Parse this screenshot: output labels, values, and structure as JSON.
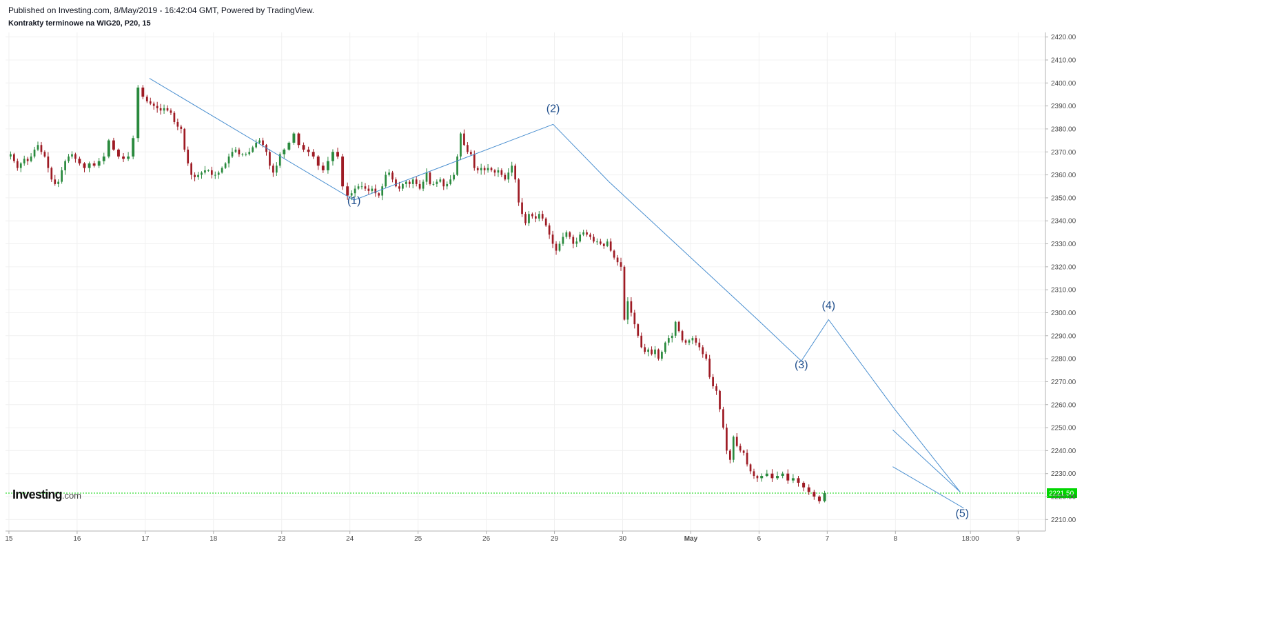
{
  "header": {
    "published": "Published on Investing.com, 8/May/2019 - 16:42:04 GMT, Powered by TradingView.",
    "title": "Kontrakty terminowe na WIG20, P20, 15"
  },
  "logo": {
    "main": "Investing",
    "suffix": ".com"
  },
  "colors": {
    "up": "#2a8a3e",
    "down": "#9e1b24",
    "wave_line": "#4a8fd0",
    "wave_label": "#1f4e8c",
    "price_line": "#00d600",
    "grid": "#f0f0f0",
    "axis": "#b0b0b0"
  },
  "chart_data": {
    "type": "candlestick",
    "title": "Kontrakty terminowe na WIG20, P20, 15",
    "ylim": [
      2205,
      2422
    ],
    "y_ticks": [
      "2210.00",
      "2220.00",
      "2230.00",
      "2240.00",
      "2250.00",
      "2260.00",
      "2270.00",
      "2280.00",
      "2290.00",
      "2300.00",
      "2310.00",
      "2320.00",
      "2330.00",
      "2340.00",
      "2350.00",
      "2360.00",
      "2370.00",
      "2380.00",
      "2390.00",
      "2400.00",
      "2410.00",
      "2420.00"
    ],
    "x_ticks": [
      "15",
      "16",
      "17",
      "18",
      "23",
      "24",
      "25",
      "26",
      "29",
      "30",
      "May",
      "6",
      "7",
      "8",
      "18:00",
      "9"
    ],
    "x_tick_pos": [
      0,
      1,
      2,
      3,
      4,
      5,
      6,
      7,
      8,
      9,
      10,
      11,
      12,
      13,
      14.1,
      14.8
    ],
    "x_range": [
      -0.05,
      15.2
    ],
    "last_price": "2221.50",
    "last_value": 2221.5,
    "grid": true,
    "series": [
      {
        "segment_start": 0.0,
        "segment_end": 1.0,
        "values": [
          2369,
          2366,
          2363,
          2365,
          2367,
          2366,
          2368,
          2371,
          2373,
          2370,
          2368,
          2363,
          2358,
          2356,
          2357,
          2362,
          2366,
          2368,
          2369,
          2367
        ]
      },
      {
        "segment_start": 1.0,
        "segment_end": 2.0,
        "values": [
          2365,
          2363,
          2365,
          2364,
          2366,
          2368,
          2375,
          2371,
          2368,
          2367,
          2368,
          2376,
          2398,
          2394
        ]
      },
      {
        "segment_start": 2.0,
        "segment_end": 3.0,
        "values": [
          2392,
          2391,
          2390,
          2389,
          2388,
          2389,
          2388,
          2387,
          2383,
          2381,
          2380,
          2371,
          2365,
          2360,
          2359,
          2360,
          2361,
          2362,
          2362,
          2360
        ]
      },
      {
        "segment_start": 3.0,
        "segment_end": 4.0,
        "values": [
          2360,
          2361,
          2363,
          2365,
          2368,
          2370,
          2371,
          2369,
          2369,
          2369,
          2370,
          2372,
          2374,
          2375,
          2373,
          2370,
          2364,
          2361,
          2364,
          2369
        ]
      },
      {
        "segment_start": 4.0,
        "segment_end": 5.0,
        "values": [
          2371,
          2374,
          2378,
          2373,
          2371,
          2370,
          2368,
          2364,
          2362,
          2366,
          2370,
          2368,
          2355,
          2351
        ]
      },
      {
        "segment_start": 5.0,
        "segment_end": 6.0,
        "values": [
          2352,
          2354,
          2355,
          2355,
          2354,
          2353,
          2354,
          2352,
          2351,
          2355,
          2360,
          2361,
          2358,
          2355,
          2354,
          2356,
          2357,
          2356,
          2358,
          2356
        ]
      },
      {
        "segment_start": 6.0,
        "segment_end": 7.0,
        "values": [
          2354,
          2357,
          2361,
          2356,
          2356,
          2357,
          2358,
          2355,
          2356,
          2358,
          2360,
          2368,
          2378,
          2373,
          2370,
          2369,
          2363,
          2362,
          2363,
          2362
        ]
      },
      {
        "segment_start": 7.0,
        "segment_end": 8.0,
        "values": [
          2363,
          2362,
          2361,
          2362,
          2360,
          2358,
          2361,
          2364,
          2358,
          2348,
          2343,
          2339,
          2343,
          2342,
          2341,
          2343,
          2341,
          2338,
          2334,
          2330
        ]
      },
      {
        "segment_start": 8.0,
        "segment_end": 9.0,
        "values": [
          2327,
          2330,
          2333,
          2335,
          2333,
          2330,
          2331,
          2334,
          2335,
          2334,
          2333,
          2331,
          2331,
          2330,
          2329,
          2331,
          2327,
          2324,
          2322,
          2320
        ]
      },
      {
        "segment_start": 9.0,
        "segment_end": 10.0,
        "values": [
          2297,
          2305,
          2300,
          2295,
          2290,
          2285,
          2283,
          2284,
          2282,
          2284,
          2280,
          2283,
          2287,
          2289,
          2290,
          2296,
          2292,
          2288,
          2287,
          2288
        ]
      },
      {
        "segment_start": 10.0,
        "segment_end": 11.0,
        "values": [
          2289,
          2287,
          2285,
          2282,
          2280,
          2272,
          2268,
          2266,
          2258,
          2250,
          2240,
          2236,
          2246,
          2242,
          2240,
          2239,
          2234,
          2231,
          2229,
          2228
        ]
      },
      {
        "segment_start": 11.0,
        "segment_end": 12.0,
        "values": [
          2229,
          2230,
          2228,
          2229,
          2230,
          2227,
          2228,
          2226,
          2224,
          2222,
          2220,
          2218,
          2221.5
        ]
      }
    ],
    "wave_lines": [
      {
        "points": [
          [
            2.06,
            2402
          ],
          [
            5.06,
            2349
          ],
          [
            7.98,
            2382
          ],
          [
            8.8,
            2357
          ],
          [
            10.98,
            2297
          ],
          [
            11.62,
            2279
          ],
          [
            12.02,
            2297
          ],
          [
            12.99,
            2258
          ],
          [
            13.95,
            2222
          ]
        ]
      },
      {
        "points": [
          [
            12.96,
            2249
          ],
          [
            13.95,
            2222
          ]
        ]
      },
      {
        "points": [
          [
            12.96,
            2233
          ],
          [
            14.0,
            2215
          ]
        ]
      }
    ],
    "wave_labels": [
      {
        "text": "(1)",
        "x": 5.06,
        "y": 2347.3
      },
      {
        "text": "(2)",
        "x": 7.98,
        "y": 2387.4
      },
      {
        "text": "(3)",
        "x": 11.62,
        "y": 2275.8
      },
      {
        "text": "(4)",
        "x": 12.02,
        "y": 2301.7
      },
      {
        "text": "(5)",
        "x": 13.98,
        "y": 2211.1
      }
    ]
  }
}
